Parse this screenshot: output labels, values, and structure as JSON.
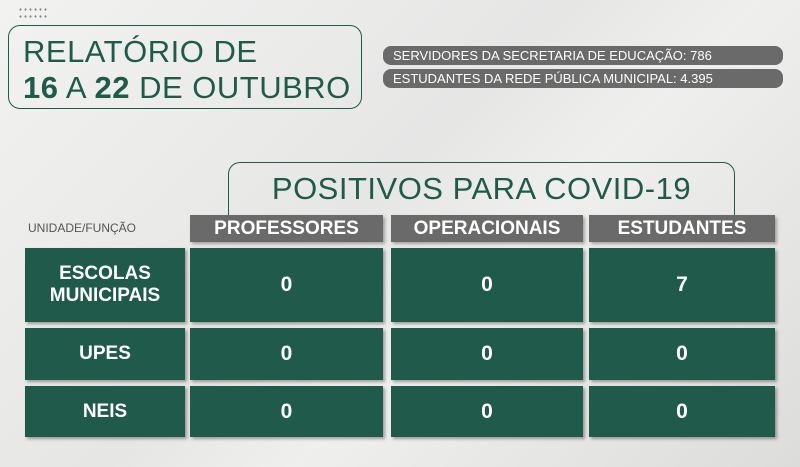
{
  "title": {
    "line1": "RELATÓRIO DE",
    "start": "16",
    "sep": "A",
    "end": "22",
    "month": "DE OUTUBRO"
  },
  "stats": [
    "SERVIDORES DA SECRETARIA DE EDUCAÇÃO: 786",
    "ESTUDANTES DA REDE PÚBLICA MUNICIPAL: 4.395"
  ],
  "table": {
    "heading": "POSITIVOS PARA COVID-19",
    "row_header": "UNIDADE/FUNÇÃO",
    "columns": [
      "PROFESSORES",
      "OPERACIONAIS",
      "ESTUDANTES"
    ],
    "rows": [
      {
        "label": "ESCOLAS MUNICIPAIS",
        "values": [
          "0",
          "0",
          "7"
        ]
      },
      {
        "label": "UPES",
        "values": [
          "0",
          "0",
          "0"
        ]
      },
      {
        "label": "NEIS",
        "values": [
          "0",
          "0",
          "0"
        ]
      }
    ]
  },
  "colors": {
    "green": "#1f5a4a",
    "gray": "#6a6a6a"
  }
}
